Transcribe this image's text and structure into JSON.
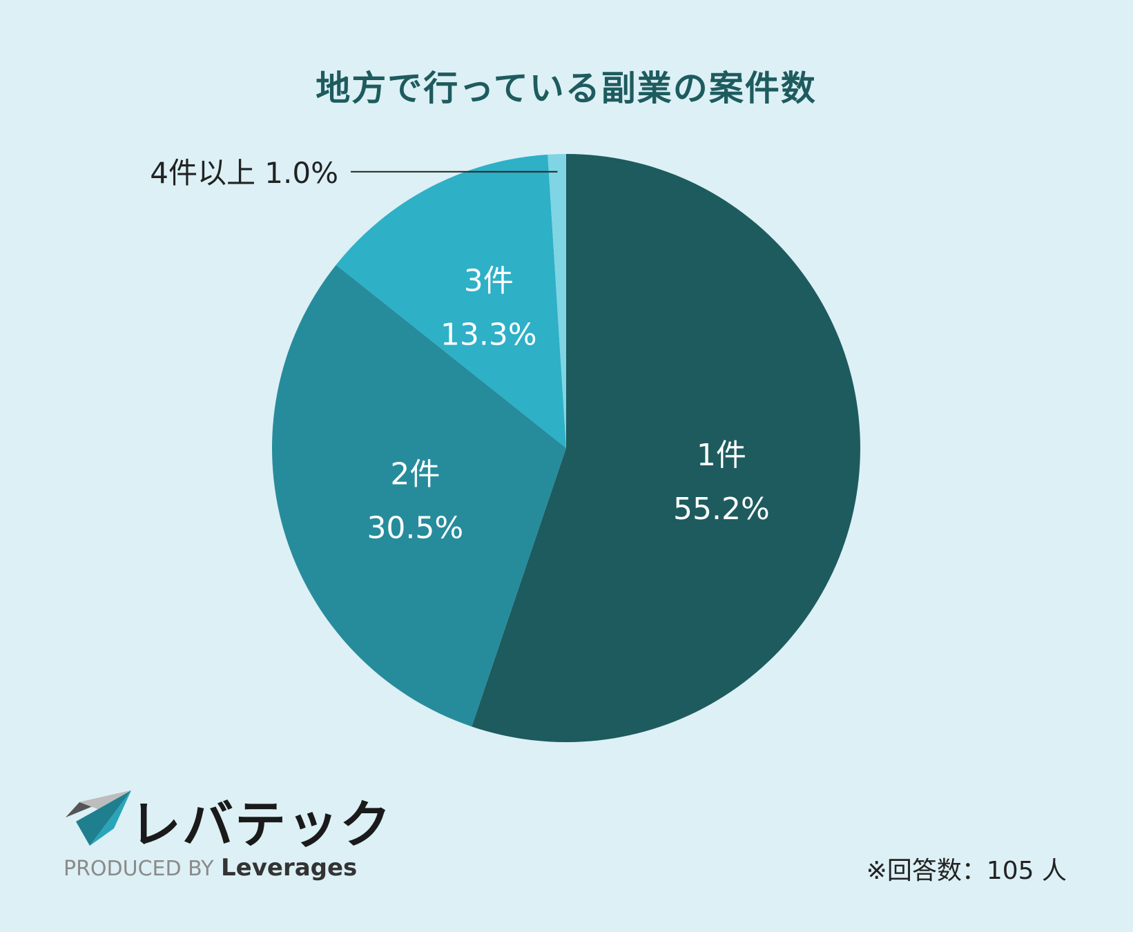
{
  "chart_data": {
    "type": "pie",
    "title": "地方で行っている副業の案件数",
    "slices": [
      {
        "label": "1件",
        "value": 55.2,
        "display": "55.2%",
        "color": "#1e5b5e"
      },
      {
        "label": "2件",
        "value": 30.5,
        "display": "30.5%",
        "color": "#268c9c"
      },
      {
        "label": "3件",
        "value": 13.3,
        "display": "13.3%",
        "color": "#2eb0c7"
      },
      {
        "label": "4件以上",
        "value": 1.0,
        "display": "1.0%",
        "color": "#7fd5e3"
      }
    ],
    "start": "top",
    "direction": "clockwise"
  },
  "footer": {
    "logo_text": "レバテック",
    "produced_by": "PRODUCED BY",
    "brand": "Leverages",
    "respondents": "※回答数：105 人"
  },
  "colors": {
    "background": "#dcf0f5",
    "title": "#1e5b5e",
    "text_dark": "#222222",
    "label_light": "#ffffff"
  }
}
